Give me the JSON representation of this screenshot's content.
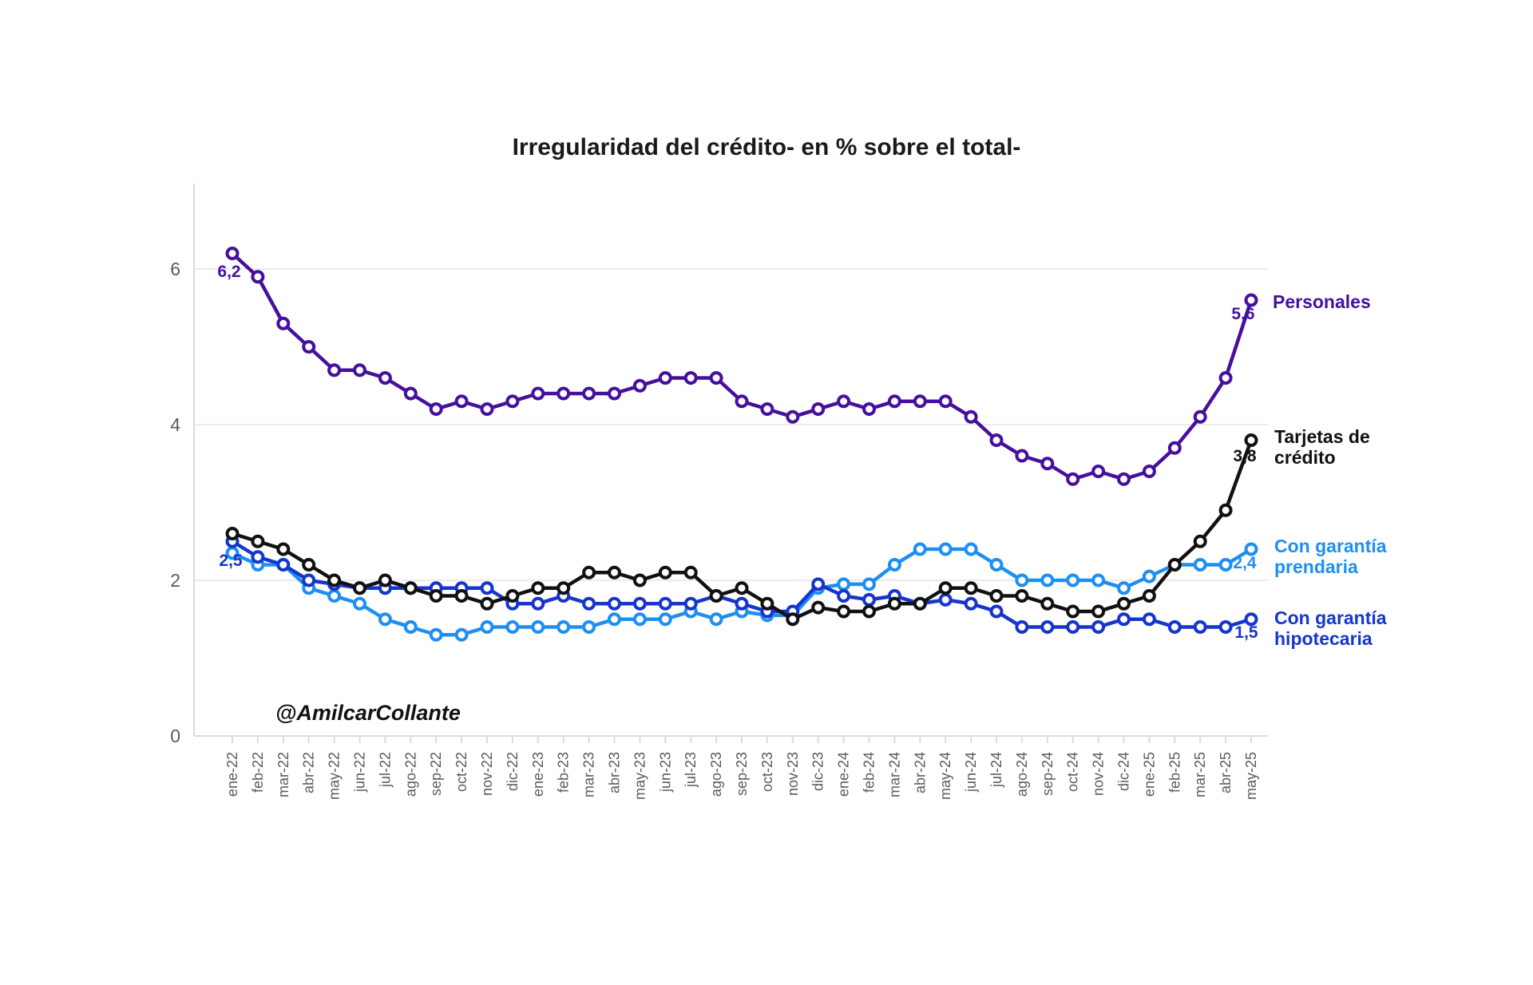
{
  "title": "Irregularidad del crédito- en % sobre el total-",
  "watermark": "@AmilcarCollante",
  "colors": {
    "personales": "#45109D",
    "tarjetas": "#111111",
    "prendaria": "#1E8FF2",
    "hipotecaria": "#1635CB",
    "grid": "#EBEBEB",
    "axis": "#DCDCDC",
    "tick_text": "#5B5B5B"
  },
  "chart_data": {
    "type": "line",
    "title": "Irregularidad del crédito- en % sobre el total-",
    "xlabel": "",
    "ylabel": "",
    "ylim": [
      0,
      6.6
    ],
    "yticks": [
      "0",
      "2",
      "4",
      "6"
    ],
    "grid": "horizontal",
    "legend_position": "right-end-labels",
    "categories": [
      "ene-22",
      "feb-22",
      "mar-22",
      "abr-22",
      "may-22",
      "jun-22",
      "jul-22",
      "ago-22",
      "sep-22",
      "oct-22",
      "nov-22",
      "dic-22",
      "ene-23",
      "feb-23",
      "mar-23",
      "abr-23",
      "may-23",
      "jun-23",
      "jul-23",
      "ago-23",
      "sep-23",
      "oct-23",
      "nov-23",
      "dic-23",
      "ene-24",
      "feb-24",
      "mar-24",
      "abr-24",
      "may-24",
      "jun-24",
      "jul-24",
      "ago-24",
      "sep-24",
      "oct-24",
      "nov-24",
      "dic-24",
      "ene-25",
      "feb-25",
      "mar-25",
      "abr-25",
      "may-25"
    ],
    "series": [
      {
        "name": "Personales",
        "color_key": "personales",
        "values": [
          6.2,
          5.9,
          5.3,
          5.0,
          4.7,
          4.7,
          4.6,
          4.4,
          4.2,
          4.3,
          4.2,
          4.3,
          4.4,
          4.4,
          4.4,
          4.4,
          4.5,
          4.6,
          4.6,
          4.6,
          4.3,
          4.2,
          4.1,
          4.2,
          4.3,
          4.2,
          4.3,
          4.3,
          4.3,
          4.1,
          3.8,
          3.6,
          3.5,
          3.3,
          3.4,
          3.3,
          3.4,
          3.7,
          4.1,
          4.6,
          5.6
        ]
      },
      {
        "name": "Tarjetas de crédito",
        "color_key": "tarjetas",
        "values": [
          2.6,
          2.5,
          2.4,
          2.2,
          2.0,
          1.9,
          2.0,
          1.9,
          1.8,
          1.8,
          1.7,
          1.8,
          1.9,
          1.9,
          2.1,
          2.1,
          2.0,
          2.1,
          2.1,
          1.8,
          1.9,
          1.7,
          1.5,
          1.65,
          1.6,
          1.6,
          1.7,
          1.7,
          1.9,
          1.9,
          1.8,
          1.8,
          1.7,
          1.6,
          1.6,
          1.7,
          1.8,
          2.2,
          2.5,
          2.9,
          3.8
        ]
      },
      {
        "name": "Con garantía prendaria",
        "color_key": "prendaria",
        "values": [
          2.35,
          2.2,
          2.2,
          1.9,
          1.8,
          1.7,
          1.5,
          1.4,
          1.3,
          1.3,
          1.4,
          1.4,
          1.4,
          1.4,
          1.4,
          1.5,
          1.5,
          1.5,
          1.6,
          1.5,
          1.6,
          1.55,
          1.55,
          1.9,
          1.95,
          1.95,
          2.2,
          2.4,
          2.4,
          2.4,
          2.2,
          2.0,
          2.0,
          2.0,
          2.0,
          1.9,
          2.05,
          2.2,
          2.2,
          2.2,
          2.4
        ]
      },
      {
        "name": "Con garantía hipotecaria",
        "color_key": "hipotecaria",
        "values": [
          2.5,
          2.3,
          2.2,
          2.0,
          1.95,
          1.9,
          1.9,
          1.9,
          1.9,
          1.9,
          1.9,
          1.7,
          1.7,
          1.8,
          1.7,
          1.7,
          1.7,
          1.7,
          1.7,
          1.8,
          1.7,
          1.6,
          1.6,
          1.95,
          1.8,
          1.75,
          1.8,
          1.7,
          1.75,
          1.7,
          1.6,
          1.4,
          1.4,
          1.4,
          1.4,
          1.5,
          1.5,
          1.4,
          1.4,
          1.4,
          1.5
        ]
      }
    ]
  },
  "annotations": {
    "start_personales": "6,2",
    "start_hipotecaria": "2,5",
    "end_personales": "5,6",
    "end_tarjetas": "3,8",
    "end_prendaria": "2,4",
    "end_hipotecaria": "1,5"
  },
  "series_labels": {
    "personales": "Personales",
    "tarjetas": "Tarjetas de crédito",
    "prendaria": "Con garantía prendaria",
    "hipotecaria": "Con garantía hipotecaria"
  }
}
